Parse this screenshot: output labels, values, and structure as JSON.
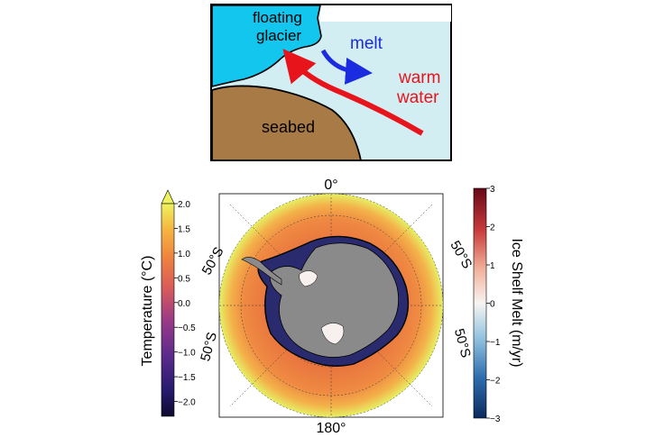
{
  "schematic": {
    "glacier_label_line1": "floating",
    "glacier_label_line2": "glacier",
    "melt_label": "melt",
    "warm_label_line1": "warm",
    "warm_label_line2": "water",
    "seabed_label": "seabed",
    "colors": {
      "glacier": "#12c6ee",
      "ocean": "#d3eef3",
      "seabed": "#a87a45",
      "melt_arrow": "#1a2be0",
      "warm_arrow": "#e8141c"
    }
  },
  "map": {
    "lon_top": "0°",
    "lon_bottom": "180°",
    "lat_left_upper": "50°S",
    "lat_left_lower": "50°S",
    "lat_right_upper": "50°S",
    "lat_right_lower": "50°S"
  },
  "temperature_colorbar": {
    "label": "Temperature (°C)",
    "ticks": [
      "2.0",
      "1.5",
      "1.0",
      "0.5",
      "0.0",
      "−0.5",
      "−1.0",
      "−1.5",
      "−2.0"
    ],
    "tick_values": [
      2.0,
      1.5,
      1.0,
      0.5,
      0.0,
      -0.5,
      -1.0,
      -1.5,
      -2.0
    ],
    "range": [
      -2.3,
      2.0
    ],
    "extend": "max",
    "colormap": "plasma"
  },
  "melt_colorbar": {
    "label": "Ice Shelf Melt (m/yr)",
    "ticks": [
      "3",
      "2",
      "1",
      "0",
      "−1",
      "−2",
      "−3"
    ],
    "tick_values": [
      3,
      2,
      1,
      0,
      -1,
      -2,
      -3
    ],
    "range": [
      -3,
      3
    ],
    "colormap": "RdBu_r"
  }
}
